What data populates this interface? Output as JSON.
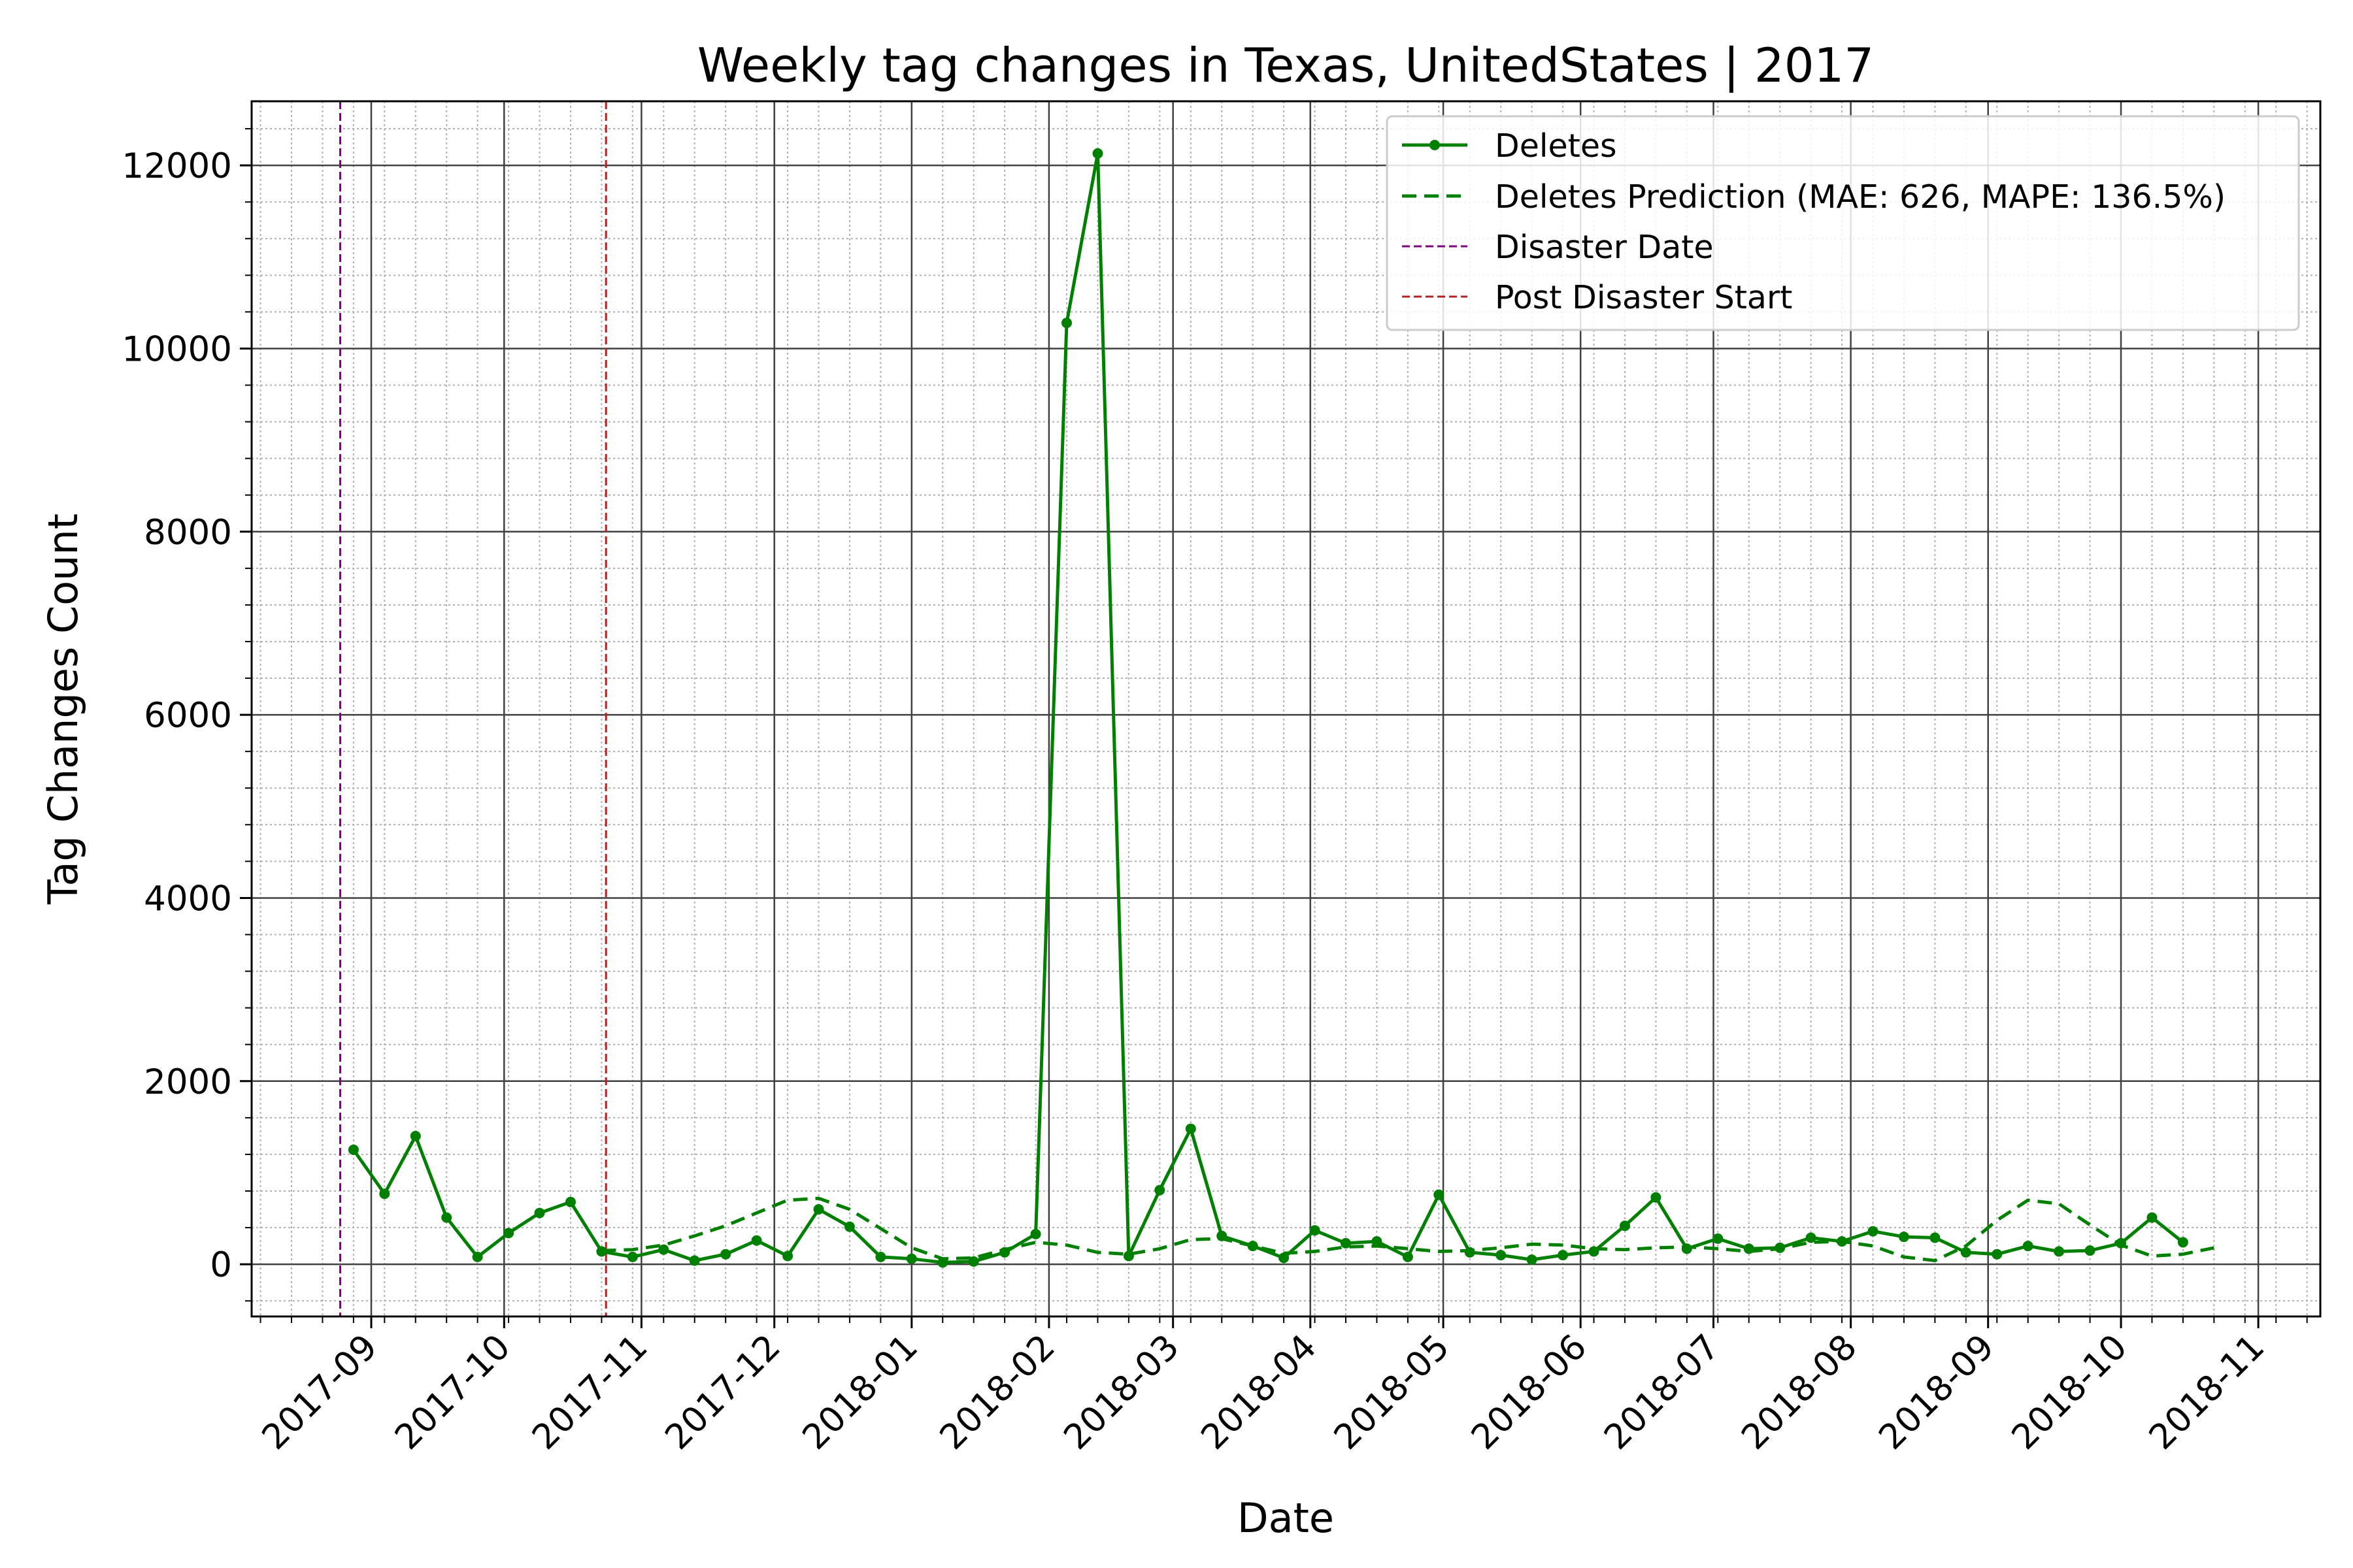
{
  "chart_data": {
    "type": "line",
    "title": "Weekly tag changes in Texas, UnitedStates | 2017",
    "xlabel": "Date",
    "ylabel": "Tag Changes Count",
    "xlim": [
      "2017-08-05",
      "2018-11-15"
    ],
    "ylim": [
      -570,
      12700
    ],
    "x_ticks": [
      "2017-09",
      "2017-10",
      "2017-11",
      "2017-12",
      "2018-01",
      "2018-02",
      "2018-03",
      "2018-04",
      "2018-05",
      "2018-06",
      "2018-07",
      "2018-08",
      "2018-09",
      "2018-10",
      "2018-11"
    ],
    "y_ticks": [
      0,
      2000,
      4000,
      6000,
      8000,
      10000,
      12000
    ],
    "grid": true,
    "legend_position": "top-right",
    "legend": [
      "Deletes",
      "Deletes Prediction (MAE: 626, MAPE: 136.5%)",
      "Disaster Date",
      "Post Disaster Start"
    ],
    "colors": {
      "deletes": "#008000",
      "prediction": "#008000",
      "disaster": "#800080",
      "post_disaster": "#b22222"
    },
    "vlines": [
      {
        "name": "Disaster Date",
        "x": "2017-08-25",
        "color": "#800080"
      },
      {
        "name": "Post Disaster Start",
        "x": "2017-10-24",
        "color": "#b22222"
      }
    ],
    "series": [
      {
        "name": "Deletes",
        "style": "solid-markers",
        "color": "#008000",
        "points": [
          [
            "2017-08-28",
            1250
          ],
          [
            "2017-09-04",
            770
          ],
          [
            "2017-09-11",
            1400
          ],
          [
            "2017-09-18",
            510
          ],
          [
            "2017-09-25",
            80
          ],
          [
            "2017-10-02",
            340
          ],
          [
            "2017-10-09",
            560
          ],
          [
            "2017-10-16",
            680
          ],
          [
            "2017-10-23",
            140
          ],
          [
            "2017-10-30",
            80
          ],
          [
            "2017-11-06",
            160
          ],
          [
            "2017-11-13",
            40
          ],
          [
            "2017-11-20",
            110
          ],
          [
            "2017-11-27",
            260
          ],
          [
            "2017-12-04",
            90
          ],
          [
            "2017-12-11",
            600
          ],
          [
            "2017-12-18",
            410
          ],
          [
            "2017-12-25",
            80
          ],
          [
            "2018-01-01",
            60
          ],
          [
            "2018-01-08",
            20
          ],
          [
            "2018-01-15",
            30
          ],
          [
            "2018-01-22",
            130
          ],
          [
            "2018-01-29",
            330
          ],
          [
            "2018-02-05",
            10280
          ],
          [
            "2018-02-12",
            12130
          ],
          [
            "2018-02-19",
            90
          ],
          [
            "2018-02-26",
            810
          ],
          [
            "2018-03-05",
            1480
          ],
          [
            "2018-03-12",
            310
          ],
          [
            "2018-03-19",
            200
          ],
          [
            "2018-03-26",
            70
          ],
          [
            "2018-04-02",
            370
          ],
          [
            "2018-04-09",
            230
          ],
          [
            "2018-04-16",
            250
          ],
          [
            "2018-04-23",
            80
          ],
          [
            "2018-04-30",
            760
          ],
          [
            "2018-05-07",
            130
          ],
          [
            "2018-05-14",
            100
          ],
          [
            "2018-05-21",
            50
          ],
          [
            "2018-05-28",
            100
          ],
          [
            "2018-06-04",
            140
          ],
          [
            "2018-06-11",
            420
          ],
          [
            "2018-06-18",
            730
          ],
          [
            "2018-06-25",
            170
          ],
          [
            "2018-07-02",
            280
          ],
          [
            "2018-07-09",
            170
          ],
          [
            "2018-07-16",
            180
          ],
          [
            "2018-07-23",
            290
          ],
          [
            "2018-07-30",
            250
          ],
          [
            "2018-08-06",
            360
          ],
          [
            "2018-08-13",
            300
          ],
          [
            "2018-08-20",
            290
          ],
          [
            "2018-08-27",
            130
          ],
          [
            "2018-09-03",
            110
          ],
          [
            "2018-09-10",
            200
          ],
          [
            "2018-09-17",
            140
          ],
          [
            "2018-09-24",
            150
          ],
          [
            "2018-10-01",
            230
          ],
          [
            "2018-10-08",
            510
          ],
          [
            "2018-10-15",
            240
          ]
        ]
      },
      {
        "name": "Deletes Prediction (MAE: 626, MAPE: 136.5%)",
        "style": "dashed",
        "color": "#008000",
        "points": [
          [
            "2017-10-23",
            150
          ],
          [
            "2017-10-30",
            160
          ],
          [
            "2017-11-06",
            210
          ],
          [
            "2017-11-13",
            310
          ],
          [
            "2017-11-20",
            420
          ],
          [
            "2017-11-27",
            560
          ],
          [
            "2017-12-04",
            700
          ],
          [
            "2017-12-11",
            720
          ],
          [
            "2017-12-18",
            600
          ],
          [
            "2017-12-25",
            390
          ],
          [
            "2018-01-01",
            180
          ],
          [
            "2018-01-08",
            60
          ],
          [
            "2018-01-15",
            70
          ],
          [
            "2018-01-22",
            160
          ],
          [
            "2018-01-29",
            240
          ],
          [
            "2018-02-05",
            210
          ],
          [
            "2018-02-12",
            130
          ],
          [
            "2018-02-19",
            110
          ],
          [
            "2018-02-26",
            170
          ],
          [
            "2018-03-05",
            270
          ],
          [
            "2018-03-12",
            280
          ],
          [
            "2018-03-19",
            200
          ],
          [
            "2018-03-26",
            120
          ],
          [
            "2018-04-02",
            140
          ],
          [
            "2018-04-09",
            190
          ],
          [
            "2018-04-16",
            200
          ],
          [
            "2018-04-23",
            170
          ],
          [
            "2018-04-30",
            140
          ],
          [
            "2018-05-07",
            150
          ],
          [
            "2018-05-14",
            180
          ],
          [
            "2018-05-21",
            220
          ],
          [
            "2018-05-28",
            210
          ],
          [
            "2018-06-04",
            170
          ],
          [
            "2018-06-11",
            160
          ],
          [
            "2018-06-18",
            180
          ],
          [
            "2018-06-25",
            190
          ],
          [
            "2018-07-02",
            170
          ],
          [
            "2018-07-09",
            140
          ],
          [
            "2018-07-16",
            170
          ],
          [
            "2018-07-23",
            240
          ],
          [
            "2018-07-30",
            250
          ],
          [
            "2018-08-06",
            200
          ],
          [
            "2018-08-13",
            80
          ],
          [
            "2018-08-20",
            40
          ],
          [
            "2018-08-27",
            200
          ],
          [
            "2018-09-03",
            480
          ],
          [
            "2018-09-10",
            700
          ],
          [
            "2018-09-17",
            660
          ],
          [
            "2018-09-24",
            430
          ],
          [
            "2018-10-01",
            210
          ],
          [
            "2018-10-08",
            90
          ],
          [
            "2018-10-15",
            110
          ],
          [
            "2018-10-22",
            180
          ]
        ]
      }
    ]
  }
}
